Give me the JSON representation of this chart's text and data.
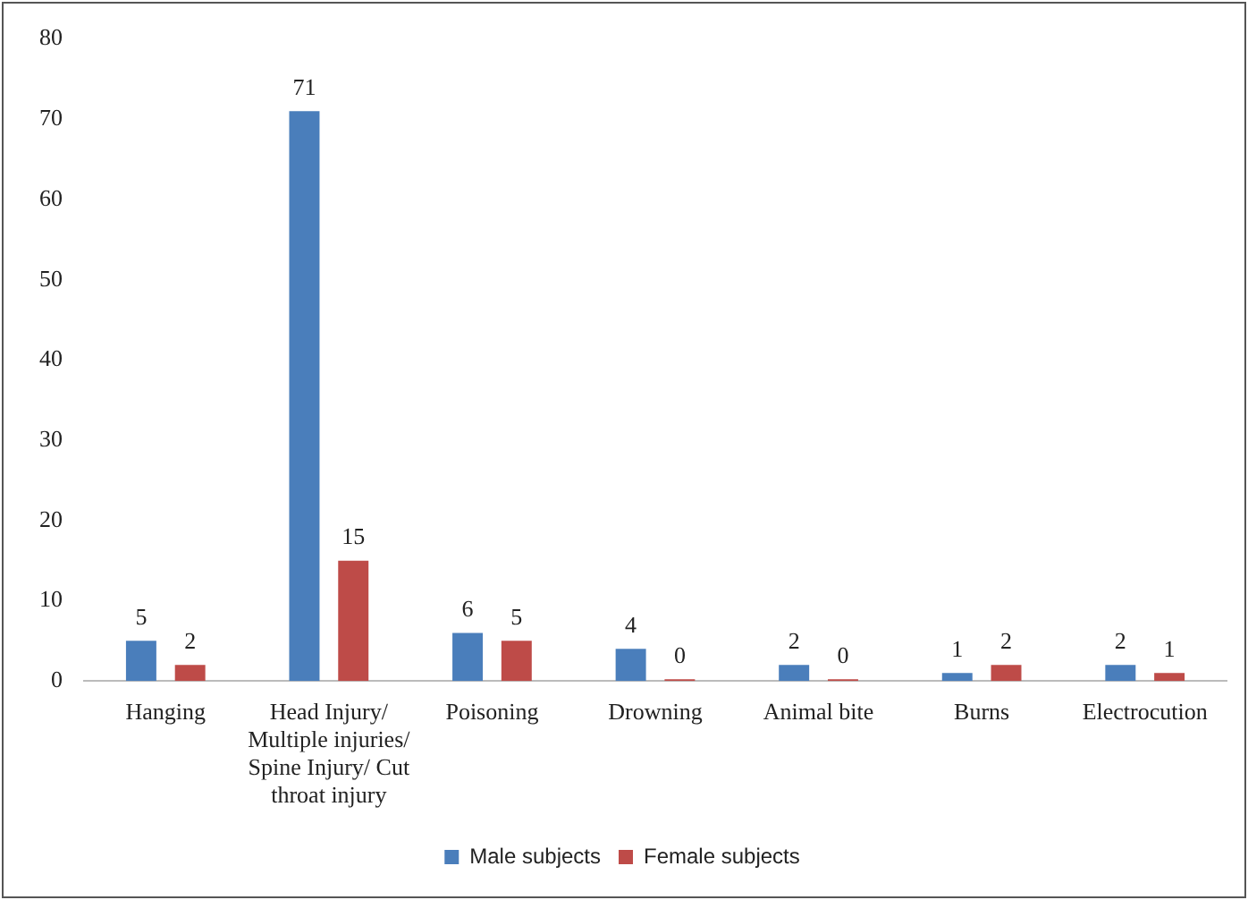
{
  "chart_data": {
    "type": "bar",
    "categories": [
      "Hanging",
      "Head Injury/ Multiple injuries/ Spine Injury/ Cut throat injury",
      "Poisoning",
      "Drowning",
      "Animal bite",
      "Burns",
      "Electrocution"
    ],
    "series": [
      {
        "name": "Male subjects",
        "color": "#4a7ebb",
        "values": [
          5,
          71,
          6,
          4,
          2,
          1,
          2
        ]
      },
      {
        "name": "Female subjects",
        "color": "#be4b48",
        "values": [
          2,
          15,
          5,
          0,
          0,
          2,
          1
        ]
      }
    ],
    "ylim": [
      0,
      80
    ],
    "yticks": [
      0,
      10,
      20,
      30,
      40,
      50,
      60,
      70,
      80
    ],
    "grid": false,
    "legend": "bottom",
    "data_labels": true
  }
}
